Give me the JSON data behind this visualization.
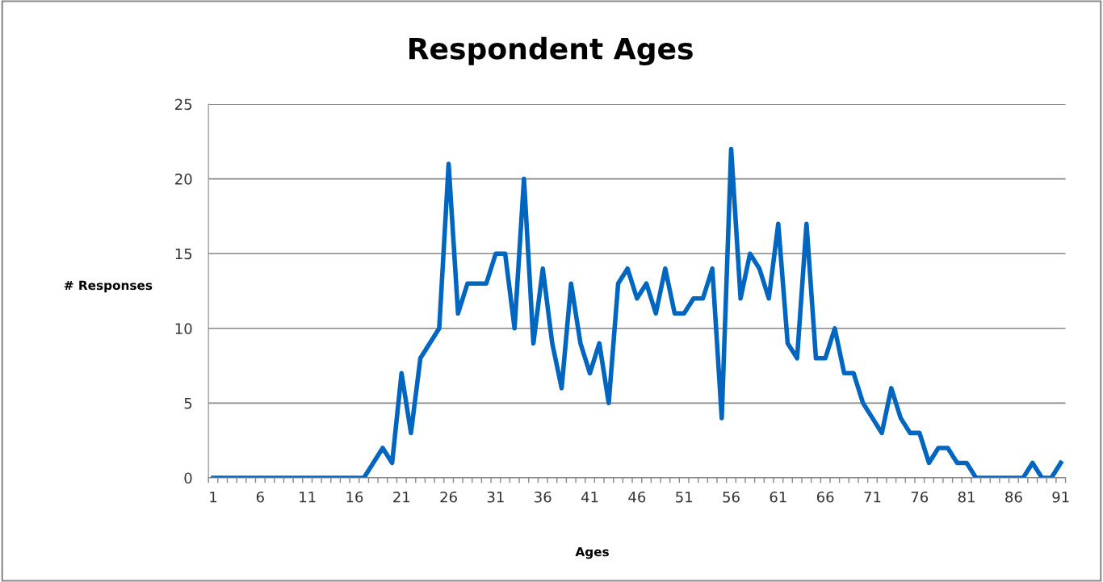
{
  "chart_data": {
    "type": "line",
    "title": "Respondent Ages",
    "xlabel": "Ages",
    "ylabel": "# Responses",
    "categories": [
      "1",
      null,
      null,
      null,
      null,
      "6",
      null,
      null,
      null,
      null,
      "11",
      null,
      null,
      null,
      null,
      "16",
      null,
      null,
      null,
      null,
      "21",
      null,
      null,
      null,
      null,
      "26",
      null,
      null,
      null,
      null,
      "31",
      null,
      null,
      null,
      null,
      "36",
      null,
      null,
      null,
      null,
      "41",
      null,
      null,
      null,
      null,
      "46",
      null,
      null,
      null,
      null,
      "51",
      null,
      null,
      null,
      null,
      "56",
      null,
      null,
      null,
      null,
      "61",
      null,
      null,
      null,
      null,
      "66",
      null,
      null,
      null,
      null,
      "71",
      null,
      null,
      null,
      null,
      "76",
      null,
      null,
      null,
      null,
      "81",
      null,
      null,
      null,
      null,
      "86",
      null,
      null,
      null,
      null,
      "91"
    ],
    "series": [
      {
        "color": "#0066c0",
        "values": [
          0,
          0,
          0,
          0,
          0,
          0,
          0,
          0,
          0,
          0,
          0,
          0,
          0,
          0,
          0,
          0,
          0,
          1,
          2,
          1,
          7,
          3,
          8,
          9,
          10,
          21,
          11,
          13,
          13,
          13,
          15,
          15,
          10,
          20,
          9,
          14,
          9,
          6,
          13,
          9,
          7,
          9,
          5,
          13,
          14,
          12,
          13,
          11,
          14,
          11,
          11,
          12,
          12,
          14,
          4,
          22,
          12,
          15,
          14,
          12,
          17,
          9,
          8,
          17,
          8,
          8,
          10,
          7,
          7,
          5,
          4,
          3,
          6,
          4,
          3,
          3,
          1,
          2,
          2,
          1,
          1,
          0,
          0,
          0,
          0,
          0,
          0,
          1,
          0,
          0,
          1
        ]
      }
    ],
    "ylim": [
      0,
      25
    ],
    "yticks": [
      0,
      5,
      10,
      15,
      20,
      25
    ],
    "grid": "y",
    "legend": false,
    "marker": "none",
    "line_style": "solid"
  }
}
